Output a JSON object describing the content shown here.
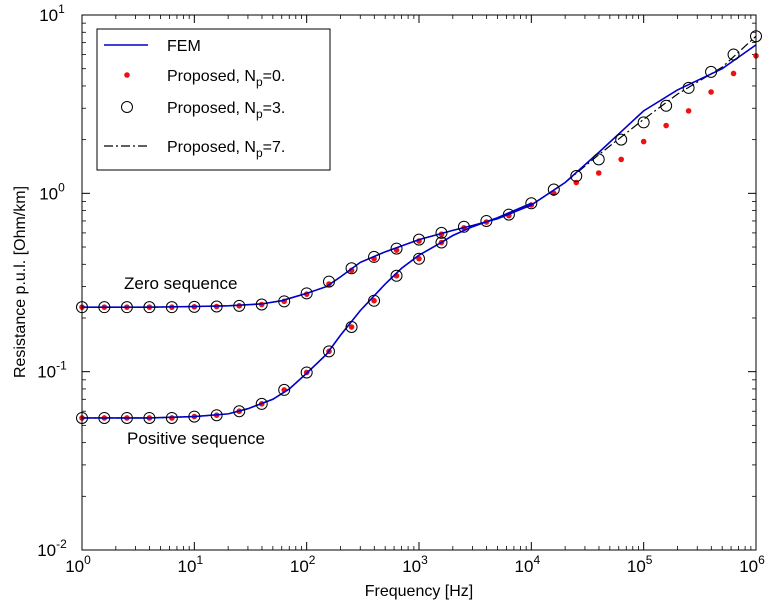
{
  "chart_data": {
    "type": "line",
    "xscale": "log",
    "yscale": "log",
    "xlim": [
      1,
      1000000
    ],
    "ylim": [
      0.01,
      10
    ],
    "xlabel": "Frequency [Hz]",
    "ylabel": "Resistance p.u.l. [Ohm/km]",
    "grid": false,
    "legend_position": "top-left",
    "x_ticks": [
      {
        "base": "10",
        "exp": "0",
        "value": 1
      },
      {
        "base": "10",
        "exp": "1",
        "value": 10
      },
      {
        "base": "10",
        "exp": "2",
        "value": 100
      },
      {
        "base": "10",
        "exp": "3",
        "value": 1000
      },
      {
        "base": "10",
        "exp": "4",
        "value": 10000
      },
      {
        "base": "10",
        "exp": "5",
        "value": 100000
      },
      {
        "base": "10",
        "exp": "6",
        "value": 1000000
      }
    ],
    "y_ticks": [
      {
        "base": "10",
        "exp": "-2",
        "value": 0.01
      },
      {
        "base": "10",
        "exp": "-1",
        "value": 0.1
      },
      {
        "base": "10",
        "exp": "0",
        "value": 1
      },
      {
        "base": "10",
        "exp": "1",
        "value": 10
      }
    ],
    "legend": [
      {
        "prefix": "FEM",
        "sub": "",
        "suffix": "",
        "style": "solid-line",
        "color": "#0000cc"
      },
      {
        "prefix": "Proposed, N",
        "sub": "p",
        "suffix": "=0.",
        "style": "red-dot",
        "color": "#ee1111"
      },
      {
        "prefix": "Proposed, N",
        "sub": "p",
        "suffix": "=3.",
        "style": "open-circle",
        "color": "#000000"
      },
      {
        "prefix": "Proposed, N",
        "sub": "p",
        "suffix": "=7.",
        "style": "dash-dot",
        "color": "#000000"
      }
    ],
    "annotations": [
      {
        "text": "Zero sequence",
        "x": 4,
        "y": 0.29
      },
      {
        "text": "Positive sequence",
        "x": 4,
        "y": 0.04
      }
    ],
    "curves": [
      {
        "sequence": "zero",
        "x": [
          1,
          2,
          4,
          10,
          20,
          40,
          60,
          100,
          150,
          200,
          300,
          500,
          1000,
          2000,
          3000,
          5000,
          10000,
          20000,
          40000,
          100000,
          200000,
          500000,
          1000000
        ],
        "fem": [
          0.23,
          0.23,
          0.23,
          0.232,
          0.234,
          0.24,
          0.25,
          0.275,
          0.3,
          0.34,
          0.41,
          0.47,
          0.55,
          0.62,
          0.66,
          0.72,
          0.86,
          1.15,
          1.7,
          2.9,
          3.8,
          5.0,
          6.8
        ],
        "np7": [
          0.23,
          0.23,
          0.23,
          0.232,
          0.234,
          0.24,
          0.25,
          0.275,
          0.3,
          0.34,
          0.41,
          0.47,
          0.55,
          0.62,
          0.66,
          0.72,
          0.86,
          1.15,
          1.65,
          2.6,
          3.6,
          5.1,
          7.6
        ],
        "np3_x": [
          1,
          1.58,
          2.51,
          3.98,
          6.31,
          10,
          15.8,
          25.1,
          39.8,
          63.1,
          100,
          158,
          251,
          398,
          631,
          1000,
          1585,
          2512,
          3981,
          6310,
          10000,
          15850,
          25120,
          39810,
          63100,
          100000,
          158500,
          251200,
          398100,
          631000,
          1000000
        ],
        "np3_y": [
          0.23,
          0.23,
          0.23,
          0.23,
          0.23,
          0.231,
          0.232,
          0.234,
          0.238,
          0.248,
          0.275,
          0.32,
          0.38,
          0.44,
          0.49,
          0.55,
          0.6,
          0.65,
          0.7,
          0.76,
          0.88,
          1.05,
          1.25,
          1.55,
          2.0,
          2.5,
          3.1,
          3.9,
          4.8,
          6.0,
          7.6
        ],
        "np0_x": [
          1,
          1.58,
          2.51,
          3.98,
          6.31,
          10,
          15.8,
          25.1,
          39.8,
          63.1,
          100,
          158,
          251,
          398,
          631,
          1000,
          1585,
          2512,
          3981,
          6310,
          10000,
          15850,
          25120,
          39810,
          63100,
          100000,
          158500,
          251200,
          398100,
          631000,
          1000000
        ],
        "np0_y": [
          0.23,
          0.23,
          0.23,
          0.23,
          0.23,
          0.231,
          0.232,
          0.234,
          0.238,
          0.248,
          0.272,
          0.31,
          0.37,
          0.43,
          0.48,
          0.54,
          0.59,
          0.64,
          0.69,
          0.75,
          0.86,
          1.0,
          1.15,
          1.3,
          1.55,
          1.95,
          2.4,
          2.9,
          3.7,
          4.7,
          5.9
        ]
      },
      {
        "sequence": "positive",
        "x": [
          1,
          2,
          4,
          10,
          20,
          30,
          50,
          70,
          100,
          150,
          200,
          300,
          500,
          700,
          1000,
          1500,
          2000,
          3000,
          5000,
          10000
        ],
        "fem": [
          0.055,
          0.055,
          0.055,
          0.056,
          0.058,
          0.062,
          0.07,
          0.08,
          0.098,
          0.125,
          0.16,
          0.22,
          0.31,
          0.38,
          0.45,
          0.52,
          0.58,
          0.65,
          0.73,
          0.88
        ],
        "np7": [
          0.055,
          0.055,
          0.055,
          0.056,
          0.058,
          0.062,
          0.07,
          0.08,
          0.098,
          0.125,
          0.16,
          0.22,
          0.31,
          0.38,
          0.45,
          0.52,
          0.58,
          0.65,
          0.73,
          0.88
        ],
        "np3_x": [
          1,
          1.58,
          2.51,
          3.98,
          6.31,
          10,
          15.8,
          25.1,
          39.8,
          63.1,
          100,
          158,
          251,
          398,
          631,
          1000,
          1585
        ],
        "np3_y": [
          0.055,
          0.055,
          0.055,
          0.055,
          0.055,
          0.056,
          0.057,
          0.06,
          0.066,
          0.079,
          0.099,
          0.13,
          0.178,
          0.25,
          0.345,
          0.43,
          0.53
        ],
        "np0_x": [
          1,
          1.58,
          2.51,
          3.98,
          6.31,
          10,
          15.8,
          25.1,
          39.8,
          63.1,
          100,
          158,
          251,
          398,
          631,
          1000,
          1585
        ],
        "np0_y": [
          0.055,
          0.055,
          0.055,
          0.055,
          0.055,
          0.056,
          0.057,
          0.06,
          0.066,
          0.079,
          0.099,
          0.13,
          0.178,
          0.25,
          0.345,
          0.43,
          0.53
        ]
      }
    ]
  }
}
